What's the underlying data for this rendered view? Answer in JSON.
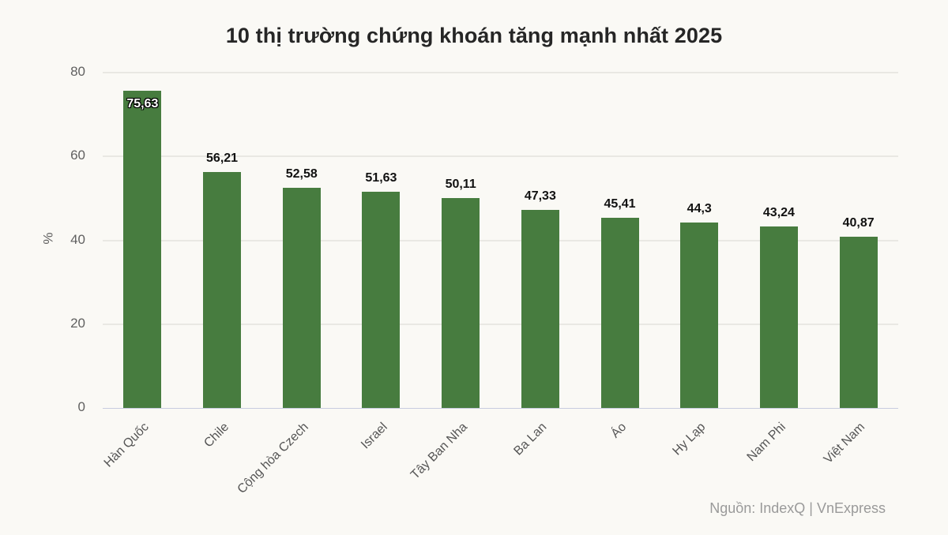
{
  "chart_data": {
    "type": "bar",
    "title": "10 thị trường chứng khoán tăng mạnh nhất 2025",
    "xlabel": "",
    "ylabel": "%",
    "ylim": [
      0,
      80
    ],
    "yticks": [
      "0",
      "20",
      "40",
      "60",
      "80"
    ],
    "grid": true,
    "legend": null,
    "bar_color": "#477c3f",
    "categories": [
      "Hàn Quốc",
      "Chile",
      "Cộng hòa Czech",
      "Israel",
      "Tây Ban Nha",
      "Ba Lan",
      "Áo",
      "Hy Lạp",
      "Nam Phi",
      "Việt Nam"
    ],
    "values": [
      75.63,
      56.21,
      52.58,
      51.63,
      50.11,
      47.33,
      45.41,
      44.3,
      43.24,
      40.87
    ],
    "value_labels": [
      "75,63",
      "56,21",
      "52,58",
      "51,63",
      "50,11",
      "47,33",
      "45,41",
      "44,3",
      "43,24",
      "40,87"
    ],
    "source": "Nguồn: IndexQ | VnExpress"
  }
}
